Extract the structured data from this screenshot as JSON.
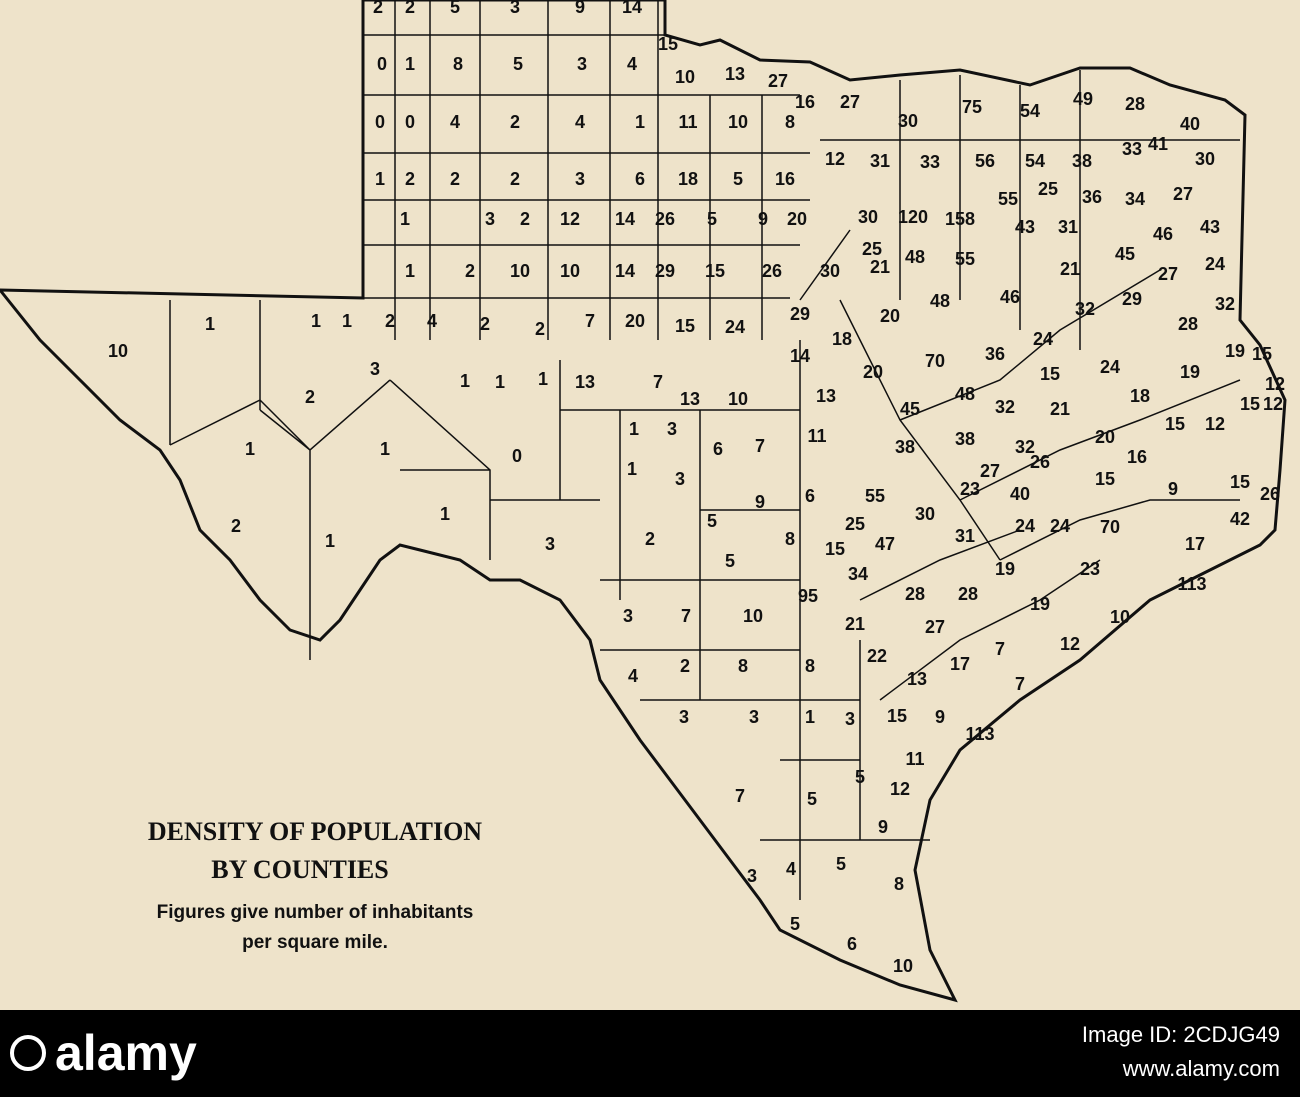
{
  "map": {
    "title": "DENSITY OF POPULATION",
    "subtitle": "BY COUNTIES",
    "note": [
      "Figures give number of inhabitants",
      "per square mile."
    ],
    "counties": [
      2,
      2,
      5,
      3,
      9,
      14,
      0,
      1,
      8,
      5,
      3,
      4,
      15,
      10,
      13,
      27,
      0,
      0,
      4,
      2,
      4,
      1,
      11,
      10,
      8,
      16,
      27,
      30,
      75,
      54,
      49,
      28,
      40,
      1,
      2,
      2,
      2,
      3,
      6,
      18,
      5,
      16,
      12,
      31,
      33,
      56,
      54,
      38,
      33,
      41,
      30,
      1,
      3,
      2,
      12,
      14,
      26,
      5,
      9,
      20,
      30,
      120,
      158,
      55,
      43,
      31,
      25,
      36,
      34,
      27,
      46,
      43,
      1,
      2,
      10,
      10,
      14,
      29,
      15,
      26,
      30,
      25,
      21,
      48,
      55,
      21,
      45,
      27,
      24,
      1,
      1,
      2,
      4,
      2,
      2,
      7,
      20,
      15,
      24,
      29,
      18,
      20,
      48,
      46,
      32,
      29,
      32,
      28,
      10,
      1,
      2,
      3,
      1,
      1,
      1,
      1,
      1,
      13,
      7,
      13,
      10,
      14,
      13,
      20,
      70,
      36,
      24,
      15,
      24,
      19,
      15,
      19,
      12,
      15,
      12,
      48,
      45,
      32,
      21,
      18,
      15,
      12,
      11,
      38,
      38,
      20,
      16,
      15,
      9,
      15,
      26,
      32,
      26,
      27,
      23,
      40,
      24,
      24,
      70,
      42,
      17,
      23,
      113,
      1,
      3,
      6,
      7,
      0,
      1,
      3,
      9,
      6,
      55,
      30,
      31,
      25,
      15,
      47,
      5,
      8,
      2,
      3,
      2,
      1,
      1,
      5,
      34,
      28,
      28,
      19,
      19,
      10,
      3,
      7,
      10,
      95,
      21,
      27,
      7,
      12,
      22,
      17,
      13,
      7,
      4,
      2,
      8,
      8,
      3,
      3,
      1,
      3,
      15,
      9,
      113,
      11,
      5,
      12,
      7,
      5,
      9,
      3,
      4,
      5,
      8,
      5,
      6,
      10
    ]
  },
  "watermark": {
    "brand": "alamy",
    "image_id": "Image ID: 2CDJG49",
    "url": "www.alamy.com"
  }
}
